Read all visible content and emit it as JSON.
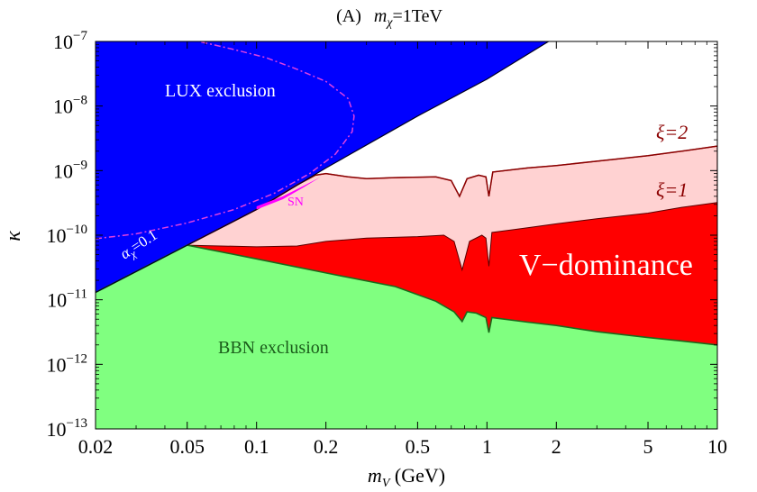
{
  "chart_data": {
    "type": "area",
    "title": "(A)   mχ=1TeV",
    "title_parts": {
      "prefix": "(A)",
      "sym": "m",
      "sub": "χ",
      "rest": "=1TeV"
    },
    "xlabel": "m",
    "xlabel_sub": "V",
    "xlabel_unit": " (GeV)",
    "ylabel": "κ",
    "x_scale": "log",
    "y_scale": "log",
    "xlim": [
      0.02,
      10
    ],
    "ylim": [
      1e-13,
      1e-07
    ],
    "x_ticks": [
      {
        "v": 0.02,
        "label": "0.02"
      },
      {
        "v": 0.05,
        "label": "0.05"
      },
      {
        "v": 0.1,
        "label": "0.1"
      },
      {
        "v": 0.2,
        "label": "0.2"
      },
      {
        "v": 0.5,
        "label": "0.5"
      },
      {
        "v": 1,
        "label": "1"
      },
      {
        "v": 2,
        "label": "2"
      },
      {
        "v": 5,
        "label": "5"
      },
      {
        "v": 10,
        "label": "10"
      }
    ],
    "y_ticks": [
      {
        "v": 1e-07,
        "exp": "−7"
      },
      {
        "v": 1e-08,
        "exp": "−8"
      },
      {
        "v": 1e-09,
        "exp": "−9"
      },
      {
        "v": 1e-10,
        "exp": "−10"
      },
      {
        "v": 1e-11,
        "exp": "−11"
      },
      {
        "v": 1e-12,
        "exp": "−12"
      },
      {
        "v": 1e-13,
        "exp": "−13"
      }
    ],
    "colors": {
      "lux": "#0000ff",
      "bbn": "#80ff80",
      "bbn_edge": "#1a6b1a",
      "xi1": "#ff0000",
      "xi2": "#ffd2d2",
      "xi_edge": "#8b0000",
      "sn": "#ff00ff",
      "alpha": "#e040e0"
    },
    "series": [
      {
        "name": "LUX exclusion",
        "role": "lux",
        "points": [
          [
            0.02,
            1.3e-11
          ],
          [
            0.05,
            7e-11
          ],
          [
            0.1,
            2.5e-10
          ],
          [
            0.2,
            1.1e-09
          ],
          [
            0.5,
            7e-09
          ],
          [
            1,
            2.6e-08
          ],
          [
            1.85,
            1e-07
          ]
        ]
      },
      {
        "name": "BBN exclusion",
        "role": "bbn",
        "points": [
          [
            0.02,
            1.3e-11
          ],
          [
            0.05,
            7e-11
          ],
          [
            0.1,
            4.3e-11
          ],
          [
            0.2,
            2.6e-11
          ],
          [
            0.4,
            1.6e-11
          ],
          [
            0.6,
            9.5e-12
          ],
          [
            0.72,
            6.5e-12
          ],
          [
            0.78,
            4.6e-12
          ],
          [
            0.82,
            6.5e-12
          ],
          [
            0.9,
            6.2e-12
          ],
          [
            0.99,
            5.3e-12
          ],
          [
            1.02,
            3.1e-12
          ],
          [
            1.05,
            5.3e-12
          ],
          [
            1.5,
            4.5e-12
          ],
          [
            2,
            4e-12
          ],
          [
            3,
            3.2e-12
          ],
          [
            5,
            2.6e-12
          ],
          [
            7,
            2.3e-12
          ],
          [
            10,
            2e-12
          ]
        ]
      },
      {
        "name": "ξ=1",
        "role": "xi1",
        "points": [
          [
            0.05,
            7e-11
          ],
          [
            0.1,
            6.6e-11
          ],
          [
            0.15,
            6.8e-11
          ],
          [
            0.2,
            8e-11
          ],
          [
            0.3,
            9e-11
          ],
          [
            0.5,
            9.5e-11
          ],
          [
            0.65,
            1e-10
          ],
          [
            0.72,
            8e-11
          ],
          [
            0.78,
            2.9e-11
          ],
          [
            0.84,
            8e-11
          ],
          [
            0.95,
            1e-10
          ],
          [
            0.99,
            9e-11
          ],
          [
            1.02,
            3.3e-11
          ],
          [
            1.05,
            1.1e-10
          ],
          [
            1.5,
            1.3e-10
          ],
          [
            2,
            1.5e-10
          ],
          [
            3,
            1.8e-10
          ],
          [
            5,
            2.2e-10
          ],
          [
            7,
            2.7e-10
          ],
          [
            10,
            3.2e-10
          ]
        ]
      },
      {
        "name": "ξ=2",
        "role": "xi2",
        "points": [
          [
            0.05,
            7e-11
          ],
          [
            0.1,
            2.5e-10
          ],
          [
            0.15,
            6e-10
          ],
          [
            0.18,
            8.5e-10
          ],
          [
            0.2,
            9e-10
          ],
          [
            0.25,
            8e-10
          ],
          [
            0.3,
            7.5e-10
          ],
          [
            0.4,
            7.8e-10
          ],
          [
            0.6,
            8e-10
          ],
          [
            0.7,
            7e-10
          ],
          [
            0.76,
            4e-10
          ],
          [
            0.82,
            7.5e-10
          ],
          [
            0.92,
            8.5e-10
          ],
          [
            0.99,
            8e-10
          ],
          [
            1.02,
            4e-10
          ],
          [
            1.06,
            9.5e-10
          ],
          [
            1.5,
            1.1e-09
          ],
          [
            2,
            1.2e-09
          ],
          [
            3,
            1.4e-09
          ],
          [
            5,
            1.7e-09
          ],
          [
            7,
            2e-09
          ],
          [
            10,
            2.4e-09
          ]
        ]
      },
      {
        "name": "SN",
        "role": "sn",
        "points": [
          [
            0.1,
            2.5e-10
          ],
          [
            0.13,
            3.6e-10
          ],
          [
            0.16,
            5.5e-10
          ],
          [
            0.19,
            8e-10
          ],
          [
            0.16,
            5.8e-10
          ],
          [
            0.13,
            4e-10
          ],
          [
            0.1,
            2.8e-10
          ]
        ]
      },
      {
        "name": "αχ=0.1",
        "role": "alpha",
        "points": [
          [
            0.02,
            8.8e-11
          ],
          [
            0.03,
            1.05e-10
          ],
          [
            0.05,
            1.55e-10
          ],
          [
            0.08,
            2.5e-10
          ],
          [
            0.12,
            4.5e-10
          ],
          [
            0.17,
            9e-10
          ],
          [
            0.22,
            1.8e-09
          ],
          [
            0.26,
            4e-09
          ],
          [
            0.265,
            7e-09
          ],
          [
            0.25,
            1.3e-08
          ],
          [
            0.2,
            2.4e-08
          ],
          [
            0.15,
            3.7e-08
          ],
          [
            0.11,
            5.6e-08
          ],
          [
            0.08,
            7.5e-08
          ],
          [
            0.06,
            9.5e-08
          ],
          [
            0.056,
            1e-07
          ]
        ]
      }
    ],
    "annotations": {
      "lux": "LUX exclusion",
      "bbn": "BBN exclusion",
      "vdom": "V−dominance",
      "sn": "SN",
      "xi2": "ξ=2",
      "xi1": "ξ=1",
      "alpha_sym": "α",
      "alpha_sub": "χ",
      "alpha_val": "=0.1"
    }
  }
}
